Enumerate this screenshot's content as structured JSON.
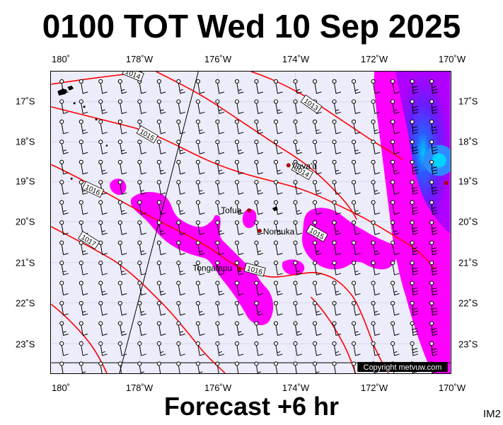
{
  "title": "0100 TOT Wed 10 Sep 2025",
  "footer": "Forecast +6 hr",
  "product_code": "IM2",
  "copyright": "Copyright metvuw.com",
  "lon_labels": [
    "180˚",
    "178˚W",
    "176˚W",
    "174˚W",
    "172˚W",
    "170˚W"
  ],
  "lat_labels": [
    "17˚S",
    "18˚S",
    "19˚S",
    "20˚S",
    "21˚S",
    "22˚S",
    "23˚S"
  ],
  "places": [
    {
      "name": "Vava'u"
    },
    {
      "name": "Tofua"
    },
    {
      "name": "Nomuka"
    },
    {
      "name": "Tongatapu"
    }
  ],
  "isobars": [
    "1014",
    "1013",
    "1015",
    "1014",
    "1016",
    "1015",
    "1017",
    "1016"
  ],
  "colors": {
    "background": "#ececfa",
    "isobar": "#ff0000",
    "rain_light": "#ff00ff",
    "rain_heavy": "#0000ff"
  }
}
